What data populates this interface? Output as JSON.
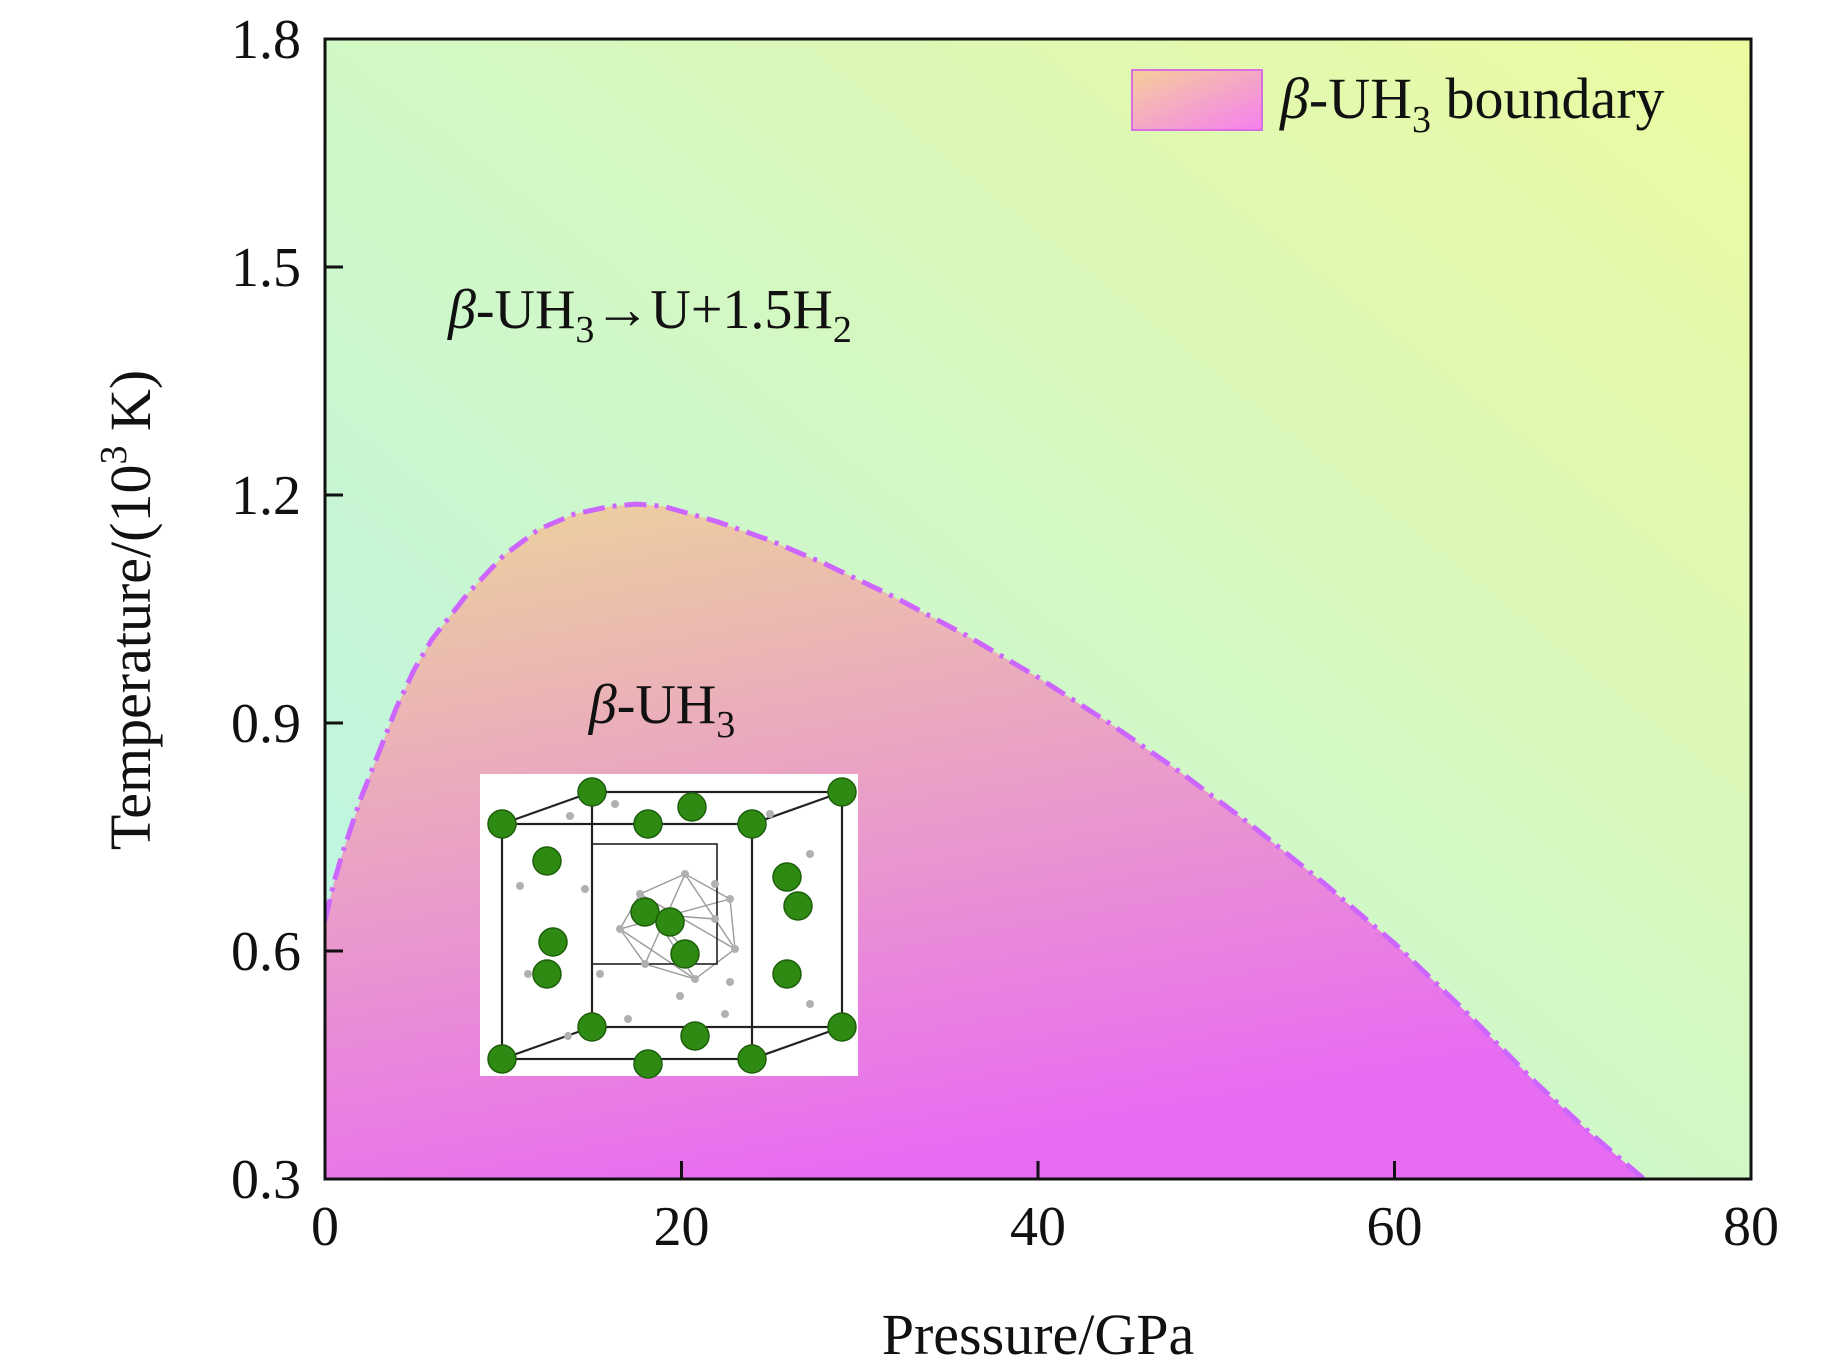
{
  "chart_data": {
    "type": "area",
    "title": "",
    "xlabel": "Pressure/GPa",
    "ylabel_parts": {
      "main": "Temperature/(10",
      "sup": "3",
      "end": " K)"
    },
    "xlim": [
      0,
      80
    ],
    "ylim": [
      0.3,
      1.8
    ],
    "x_ticks": [
      0,
      20,
      40,
      60,
      80
    ],
    "y_ticks": [
      0.3,
      0.6,
      0.9,
      1.2,
      1.5,
      1.8
    ],
    "x_tick_labels": [
      "0",
      "20",
      "40",
      "60",
      "80"
    ],
    "y_tick_labels": [
      "0.3",
      "0.6",
      "0.9",
      "1.2",
      "1.5",
      "1.8"
    ],
    "grid": false,
    "legend_position": "top-right",
    "legend": {
      "prefix": "β",
      "label": "-UH",
      "sub": "3",
      "suffix": " boundary"
    },
    "series": [
      {
        "name": "β-UH3 boundary",
        "style": "dash-dot",
        "color": "#cc66ff",
        "x": [
          0,
          0.5,
          1,
          2,
          3,
          4,
          5,
          6,
          8,
          10,
          12,
          14,
          16,
          17.5,
          19,
          22,
          25,
          28,
          32,
          36,
          40,
          44,
          48,
          52,
          56,
          60,
          64,
          68,
          71,
          73,
          74
        ],
        "y": [
          0.64,
          0.69,
          0.73,
          0.8,
          0.86,
          0.92,
          0.97,
          1.01,
          1.07,
          1.12,
          1.155,
          1.175,
          1.185,
          1.188,
          1.185,
          1.165,
          1.14,
          1.11,
          1.065,
          1.015,
          0.96,
          0.9,
          0.835,
          0.765,
          0.69,
          0.61,
          0.52,
          0.425,
          0.36,
          0.32,
          0.3
        ]
      }
    ],
    "annotations": {
      "upper_region": {
        "prefix": "β",
        "a": "-UH",
        "sub1": "3",
        "b": "→U+1.5H",
        "sub2": "2",
        "at_x": 6.9,
        "at_y": 1.42
      },
      "lower_region": {
        "prefix": "β",
        "a": "-UH",
        "sub1": "3",
        "at_x": 14.8,
        "at_y": 0.9
      }
    },
    "colors": {
      "background_low": "#b8f5ea",
      "background_high": "#ecfaa0",
      "region_top": "#ecd49a",
      "region_bottom": "#e86cf2",
      "boundary": "#cc66ff",
      "legend_swatch_a": "#f5cf9b",
      "legend_swatch_b": "#f580ee",
      "axis": "#111111"
    }
  },
  "inset": {
    "description_icon": "crystal-structure-image",
    "colors": {
      "u_atom": "#2e8a12",
      "h_atom": "#b0b0b0",
      "edge": "#222222",
      "bond": "#9a9a9a"
    }
  }
}
